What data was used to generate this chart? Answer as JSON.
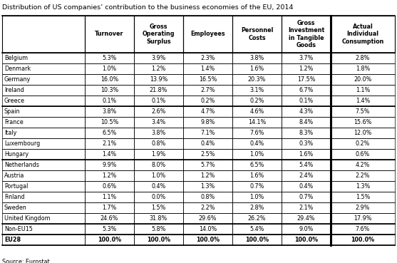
{
  "title": "Distribution of US companies’ contribution to the business economies of the EU, 2014",
  "source": "Source: Eurostat",
  "columns": [
    "Turnover",
    "Gross\nOperating\nSurplus",
    "Employees",
    "Personnel\nCosts",
    "Gross\nInvestment\nin Tangible\nGoods",
    "Actual\nIndividual\nConsumption"
  ],
  "rows": [
    {
      "country": "Belgium",
      "values": [
        "5.3%",
        "3.9%",
        "2.3%",
        "3.8%",
        "3.7%",
        "2.8%"
      ],
      "group": 1
    },
    {
      "country": "Denmark",
      "values": [
        "1.0%",
        "1.2%",
        "1.4%",
        "1.6%",
        "1.2%",
        "1.8%"
      ],
      "group": 1
    },
    {
      "country": "Germany",
      "values": [
        "16.0%",
        "13.9%",
        "16.5%",
        "20.3%",
        "17.5%",
        "20.0%"
      ],
      "group": 1
    },
    {
      "country": "Ireland",
      "values": [
        "10.3%",
        "21.8%",
        "2.7%",
        "3.1%",
        "6.7%",
        "1.1%"
      ],
      "group": 1
    },
    {
      "country": "Greece",
      "values": [
        "0.1%",
        "0.1%",
        "0.2%",
        "0.2%",
        "0.1%",
        "1.4%"
      ],
      "group": 1
    },
    {
      "country": "Spain",
      "values": [
        "3.8%",
        "2.6%",
        "4.7%",
        "4.6%",
        "4.3%",
        "7.5%"
      ],
      "group": 2
    },
    {
      "country": "France",
      "values": [
        "10.5%",
        "3.4%",
        "9.8%",
        "14.1%",
        "8.4%",
        "15.6%"
      ],
      "group": 2
    },
    {
      "country": "Italy",
      "values": [
        "6.5%",
        "3.8%",
        "7.1%",
        "7.6%",
        "8.3%",
        "12.0%"
      ],
      "group": 2
    },
    {
      "country": "Luxembourg",
      "values": [
        "2.1%",
        "0.8%",
        "0.4%",
        "0.4%",
        "0.3%",
        "0.2%"
      ],
      "group": 2
    },
    {
      "country": "Hungary",
      "values": [
        "1.4%",
        "1.9%",
        "2.5%",
        "1.0%",
        "1.6%",
        "0.6%"
      ],
      "group": 2
    },
    {
      "country": "Netherlands",
      "values": [
        "9.9%",
        "8.0%",
        "5.7%",
        "6.5%",
        "5.4%",
        "4.2%"
      ],
      "group": 3
    },
    {
      "country": "Austria",
      "values": [
        "1.2%",
        "1.0%",
        "1.2%",
        "1.6%",
        "2.4%",
        "2.2%"
      ],
      "group": 3
    },
    {
      "country": "Portugal",
      "values": [
        "0.6%",
        "0.4%",
        "1.3%",
        "0.7%",
        "0.4%",
        "1.3%"
      ],
      "group": 3
    },
    {
      "country": "Finland",
      "values": [
        "1.1%",
        "0.0%",
        "0.8%",
        "1.0%",
        "0.7%",
        "1.5%"
      ],
      "group": 3
    },
    {
      "country": "Sweden",
      "values": [
        "1.7%",
        "1.5%",
        "2.2%",
        "2.8%",
        "2.1%",
        "2.9%"
      ],
      "group": 3
    },
    {
      "country": "United Kingdom",
      "values": [
        "24.6%",
        "31.8%",
        "29.6%",
        "26.2%",
        "29.4%",
        "17.9%"
      ],
      "group": 3
    },
    {
      "country": "Non-EU15",
      "values": [
        "5.3%",
        "5.8%",
        "14.0%",
        "5.4%",
        "9.0%",
        "7.6%"
      ],
      "group": 4
    },
    {
      "country": "EU28",
      "values": [
        "100.0%",
        "100.0%",
        "100.0%",
        "100.0%",
        "100.0%",
        "100.0%"
      ],
      "group": 5
    }
  ],
  "group_thick_before": [
    0,
    5,
    10,
    16,
    17,
    18
  ],
  "last_col_thick_sep": 5,
  "bold_groups": [
    5
  ]
}
